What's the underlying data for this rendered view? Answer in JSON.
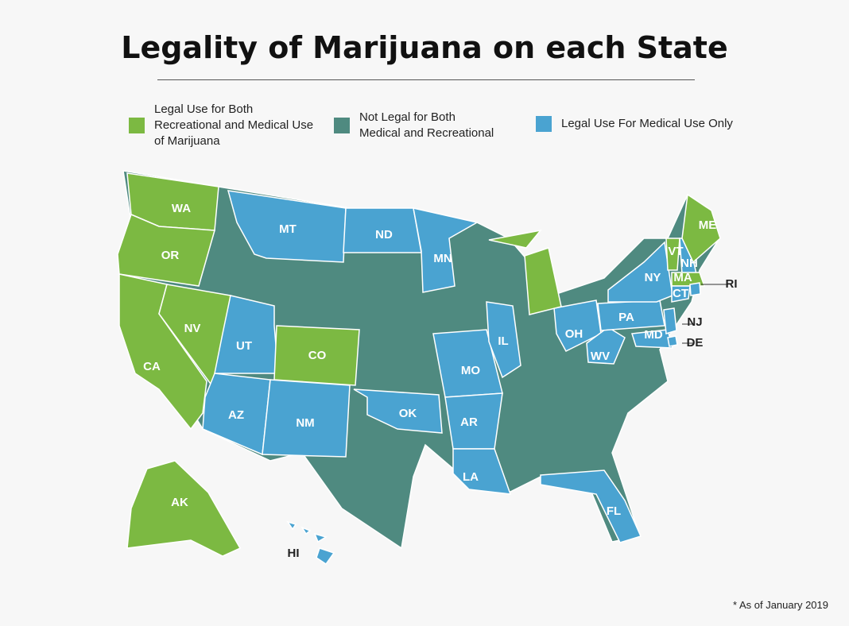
{
  "title": "Legality of Marijuana on each State",
  "legend": [
    {
      "label": "Legal Use for Both\nRecreational and Medical Use\nof Marijuana",
      "color": "#7cb942"
    },
    {
      "label": "Not Legal for Both\nMedical and Recreational",
      "color": "#4f8a80"
    },
    {
      "label": "Legal Use For Medical Use Only",
      "color": "#4aa3d1"
    }
  ],
  "states": [
    {
      "label": "WA",
      "color": "#7cb942"
    },
    {
      "label": "OR",
      "color": "#7cb942"
    },
    {
      "label": "CA",
      "color": "#7cb942"
    },
    {
      "label": "NV",
      "color": "#7cb942"
    },
    {
      "label": "UT",
      "color": "#4aa3d1"
    },
    {
      "label": "CO",
      "color": "#7cb942"
    },
    {
      "label": "AZ",
      "color": "#4aa3d1"
    },
    {
      "label": "NM",
      "color": "#4aa3d1"
    },
    {
      "label": "MT",
      "color": "#4aa3d1"
    },
    {
      "label": "ND",
      "color": "#4aa3d1"
    },
    {
      "label": "MN",
      "color": "#4aa3d1"
    },
    {
      "label": "OK",
      "color": "#4aa3d1"
    },
    {
      "label": "MO",
      "color": "#4aa3d1"
    },
    {
      "label": "AR",
      "color": "#4aa3d1"
    },
    {
      "label": "LA",
      "color": "#4aa3d1"
    },
    {
      "label": "IL",
      "color": "#4aa3d1"
    },
    {
      "label": "OH",
      "color": "#4aa3d1"
    },
    {
      "label": "WV",
      "color": "#4aa3d1"
    },
    {
      "label": "PA",
      "color": "#4aa3d1"
    },
    {
      "label": "NY",
      "color": "#4aa3d1"
    },
    {
      "label": "VT",
      "color": "#7cb942"
    },
    {
      "label": "NH",
      "color": "#4aa3d1"
    },
    {
      "label": "MA",
      "color": "#7cb942"
    },
    {
      "label": "CT",
      "color": "#4aa3d1"
    },
    {
      "label": "MD",
      "color": "#4aa3d1"
    },
    {
      "label": "ME",
      "color": "#7cb942"
    },
    {
      "label": "FL",
      "color": "#4aa3d1"
    },
    {
      "label": "AK",
      "color": "#7cb942"
    },
    {
      "label": "HI",
      "color": "#4aa3d1"
    },
    {
      "label": "RI",
      "color": "#4aa3d1"
    },
    {
      "label": "NJ",
      "color": "#4aa3d1"
    },
    {
      "label": "DE",
      "color": "#4aa3d1"
    }
  ],
  "footnote": "* As of January 2019"
}
